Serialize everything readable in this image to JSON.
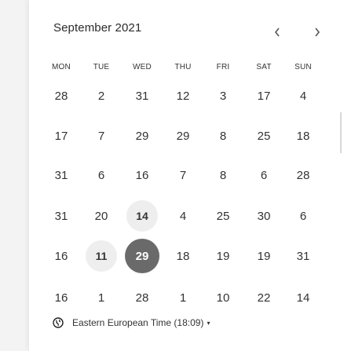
{
  "header": {
    "title": "September 2021",
    "prev_icon": "chevron-left-icon",
    "next_icon": "chevron-right-icon"
  },
  "weekdays": [
    "MON",
    "TUE",
    "WED",
    "THU",
    "FRI",
    "SAT",
    "SUN"
  ],
  "weeks": [
    [
      "28",
      "2",
      "31",
      "12",
      "3",
      "17",
      "4"
    ],
    [
      "17",
      "7",
      "29",
      "29",
      "8",
      "25",
      "18"
    ],
    [
      "31",
      "6",
      "16",
      "7",
      "8",
      "6",
      "28"
    ],
    [
      "31",
      "20",
      "14",
      "4",
      "25",
      "30",
      "6"
    ],
    [
      "16",
      "11",
      "29",
      "18",
      "19",
      "19",
      "31"
    ],
    [
      "16",
      "1",
      "28",
      "1",
      "10",
      "22",
      "14"
    ]
  ],
  "highlighted": {
    "week": 3,
    "day": 2
  },
  "highlighted_2": {
    "week": 4,
    "day": 1
  },
  "selected": {
    "week": 4,
    "day": 2
  },
  "timezone": {
    "icon": "globe-icon",
    "label": "Eastern European Time (18:09)",
    "caret": "▾"
  },
  "colors": {
    "selected_bg": "#6a6a6a",
    "highlight_bg": "#eeeeee",
    "text": "#333333"
  }
}
